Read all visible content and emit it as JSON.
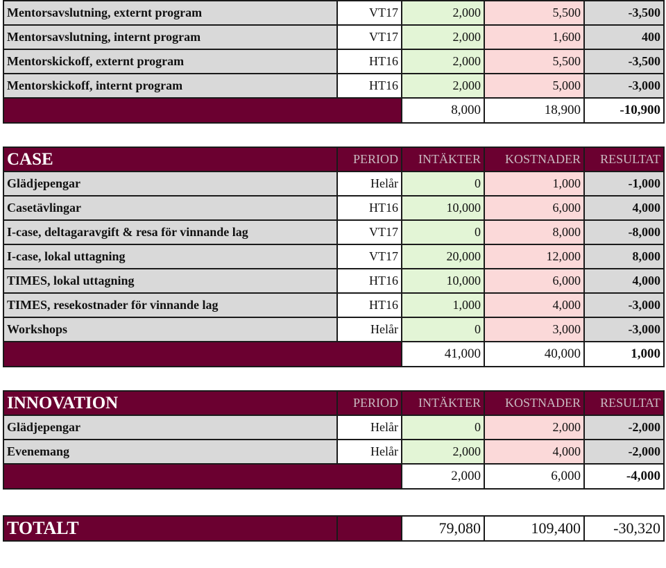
{
  "mentor": {
    "rows": [
      {
        "name": "Mentorsavslutning, externt program",
        "period": "VT17",
        "income": "2,000",
        "cost": "5,500",
        "result": "-3,500"
      },
      {
        "name": "Mentorsavslutning, internt program",
        "period": "VT17",
        "income": "2,000",
        "cost": "1,600",
        "result": "400"
      },
      {
        "name": "Mentorskickoff, externt program",
        "period": "HT16",
        "income": "2,000",
        "cost": "5,500",
        "result": "-3,500"
      },
      {
        "name": "Mentorskickoff, internt program",
        "period": "HT16",
        "income": "2,000",
        "cost": "5,000",
        "result": "-3,000"
      }
    ],
    "sum": {
      "income": "8,000",
      "cost": "18,900",
      "result": "-10,900"
    }
  },
  "case": {
    "title": "CASE",
    "headers": {
      "period": "PERIOD",
      "income": "INTÄKTER",
      "cost": "KOSTNADER",
      "result": "RESULTAT"
    },
    "rows": [
      {
        "name": "Glädjepengar",
        "period": "Helår",
        "income": "0",
        "cost": "1,000",
        "result": "-1,000"
      },
      {
        "name": "Casetävlingar",
        "period": "HT16",
        "income": "10,000",
        "cost": "6,000",
        "result": "4,000"
      },
      {
        "name": "I-case, deltagaravgift & resa för vinnande lag",
        "period": "VT17",
        "income": "0",
        "cost": "8,000",
        "result": "-8,000"
      },
      {
        "name": "I-case, lokal uttagning",
        "period": "VT17",
        "income": "20,000",
        "cost": "12,000",
        "result": "8,000"
      },
      {
        "name": "TIMES, lokal uttagning",
        "period": "HT16",
        "income": "10,000",
        "cost": "6,000",
        "result": "4,000"
      },
      {
        "name": "TIMES, resekostnader för vinnande lag",
        "period": "HT16",
        "income": "1,000",
        "cost": "4,000",
        "result": "-3,000"
      },
      {
        "name": "Workshops",
        "period": "Helår",
        "income": "0",
        "cost": "3,000",
        "result": "-3,000"
      }
    ],
    "sum": {
      "income": "41,000",
      "cost": "40,000",
      "result": "1,000"
    }
  },
  "innovation": {
    "title": "INNOVATION",
    "headers": {
      "period": "PERIOD",
      "income": "INTÄKTER",
      "cost": "KOSTNADER",
      "result": "RESULTAT"
    },
    "rows": [
      {
        "name": "Glädjepengar",
        "period": "Helår",
        "income": "0",
        "cost": "2,000",
        "result": "-2,000"
      },
      {
        "name": "Evenemang",
        "period": "Helår",
        "income": "2,000",
        "cost": "4,000",
        "result": "-2,000"
      }
    ],
    "sum": {
      "income": "2,000",
      "cost": "6,000",
      "result": "-4,000"
    }
  },
  "total": {
    "label": "TOTALT",
    "income": "79,080",
    "cost": "109,400",
    "result": "-30,320"
  }
}
